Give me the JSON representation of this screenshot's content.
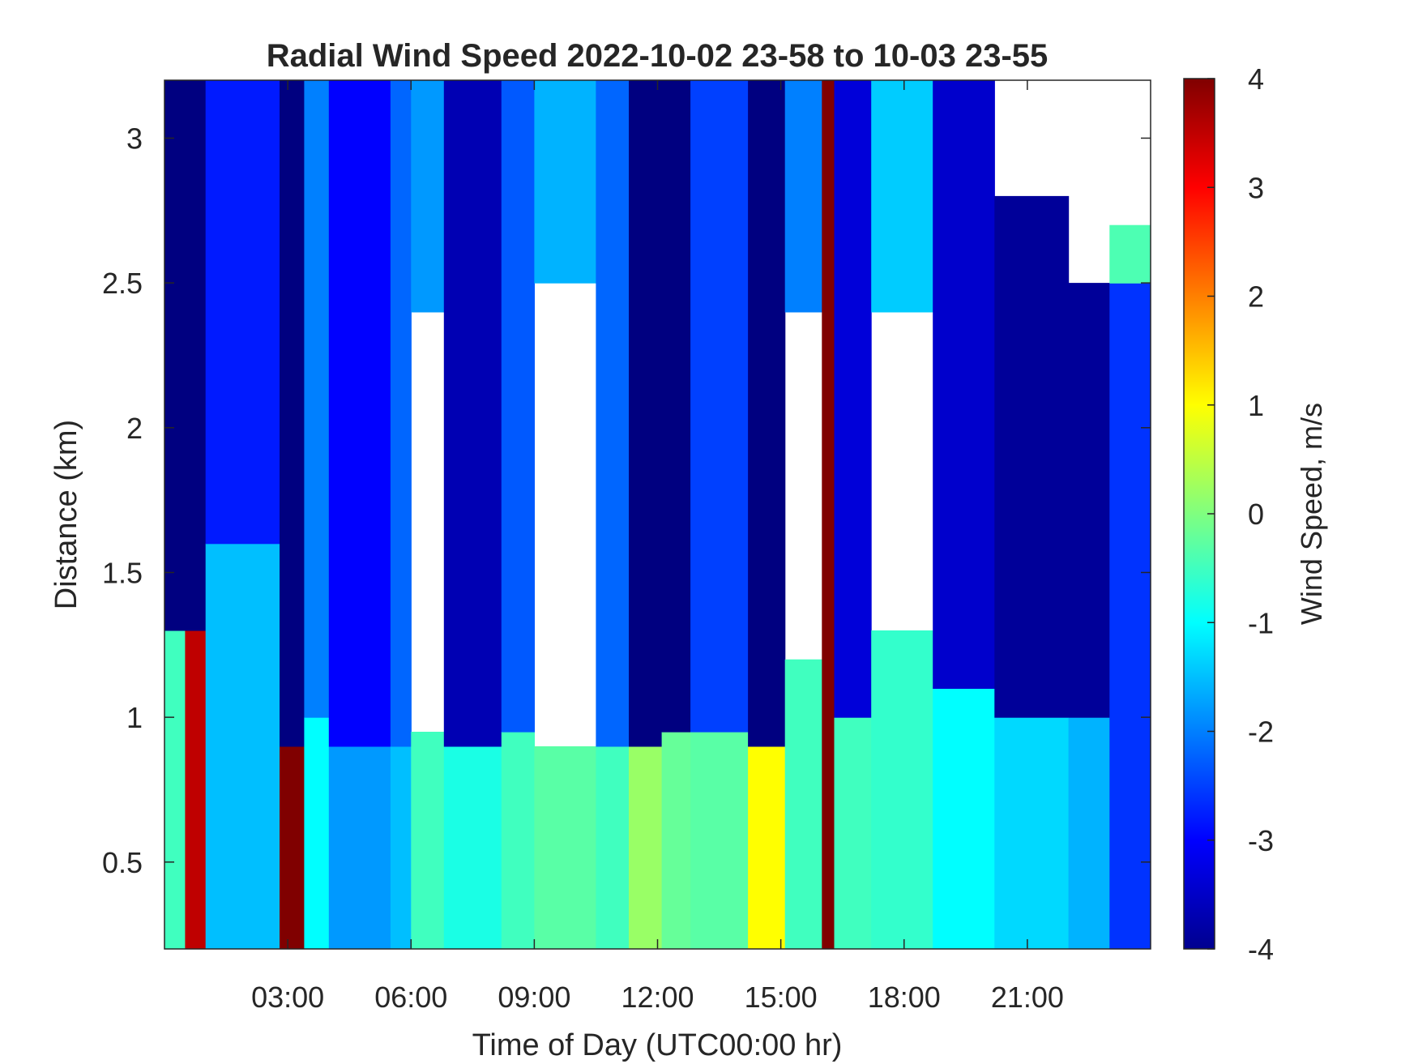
{
  "chart_data": {
    "type": "heatmap",
    "title": "Radial Wind Speed 2022-10-02 23-58 to 10-03 23-55",
    "xlabel": "Time of Day (UTC00:00 hr)",
    "ylabel": "Distance (km)",
    "colorbar_label": "Wind Speed, m/s",
    "colormap": "jet",
    "x_unit": "hours UTC",
    "xlim": [
      0,
      24
    ],
    "ylim": [
      0.2,
      3.2
    ],
    "clim": [
      -4,
      4
    ],
    "x_ticks": [
      3,
      6,
      9,
      12,
      15,
      18,
      21
    ],
    "x_tick_labels": [
      "03:00",
      "06:00",
      "09:00",
      "12:00",
      "15:00",
      "18:00",
      "21:00"
    ],
    "y_ticks": [
      0.5,
      1,
      1.5,
      2,
      2.5,
      3
    ],
    "y_tick_labels": [
      "0.5",
      "1",
      "1.5",
      "2",
      "2.5",
      "3"
    ],
    "c_ticks": [
      4,
      3,
      2,
      1,
      0,
      -1,
      -2,
      -3,
      -4
    ],
    "c_tick_labels": [
      "4",
      "3",
      "2",
      "1",
      "0",
      "-1",
      "-2",
      "-3",
      "-4"
    ],
    "segments": [
      {
        "x": [
          0.0,
          0.5
        ],
        "bands": [
          [
            0.2,
            1.3,
            -0.5
          ],
          [
            1.3,
            3.2,
            -4
          ]
        ]
      },
      {
        "x": [
          0.5,
          1.0
        ],
        "bands": [
          [
            0.2,
            1.3,
            3.5
          ],
          [
            1.3,
            3.2,
            -4
          ]
        ]
      },
      {
        "x": [
          1.0,
          2.8
        ],
        "bands": [
          [
            0.2,
            1.6,
            -1.5
          ],
          [
            1.6,
            3.2,
            -2.8
          ]
        ]
      },
      {
        "x": [
          2.8,
          3.4
        ],
        "bands": [
          [
            0.2,
            0.9,
            4
          ],
          [
            0.9,
            3.2,
            -4
          ]
        ]
      },
      {
        "x": [
          3.4,
          4.0
        ],
        "bands": [
          [
            0.2,
            1.0,
            -1.0
          ],
          [
            1.0,
            3.2,
            -2.0
          ]
        ]
      },
      {
        "x": [
          4.0,
          5.5
        ],
        "bands": [
          [
            0.2,
            0.9,
            -1.8
          ],
          [
            0.9,
            3.2,
            -3.0
          ]
        ]
      },
      {
        "x": [
          5.5,
          6.0
        ],
        "bands": [
          [
            0.2,
            0.9,
            -1.5
          ],
          [
            0.9,
            3.2,
            -2.2
          ]
        ]
      },
      {
        "x": [
          6.0,
          6.8
        ],
        "bands": [
          [
            0.2,
            0.95,
            -0.5
          ],
          [
            2.4,
            3.2,
            -1.8
          ]
        ]
      },
      {
        "x": [
          6.8,
          8.2
        ],
        "bands": [
          [
            0.2,
            0.9,
            -0.8
          ],
          [
            0.9,
            3.2,
            -3.6
          ]
        ]
      },
      {
        "x": [
          8.2,
          9.0
        ],
        "bands": [
          [
            0.2,
            0.95,
            -0.5
          ],
          [
            0.95,
            3.2,
            -2.3
          ]
        ]
      },
      {
        "x": [
          9.0,
          10.5
        ],
        "bands": [
          [
            0.2,
            0.9,
            -0.3
          ],
          [
            2.5,
            3.2,
            -1.6
          ]
        ]
      },
      {
        "x": [
          10.5,
          11.3
        ],
        "bands": [
          [
            0.2,
            0.9,
            -0.5
          ],
          [
            0.9,
            3.2,
            -2.2
          ]
        ]
      },
      {
        "x": [
          11.3,
          12.1
        ],
        "bands": [
          [
            0.2,
            0.9,
            0.2
          ],
          [
            0.9,
            3.2,
            -4
          ]
        ]
      },
      {
        "x": [
          12.1,
          12.8
        ],
        "bands": [
          [
            0.2,
            0.95,
            -0.2
          ],
          [
            0.95,
            3.2,
            -4
          ]
        ]
      },
      {
        "x": [
          12.8,
          14.2
        ],
        "bands": [
          [
            0.2,
            0.95,
            -0.3
          ],
          [
            0.95,
            3.2,
            -2.5
          ]
        ]
      },
      {
        "x": [
          14.2,
          15.1
        ],
        "bands": [
          [
            0.2,
            0.9,
            1.0
          ],
          [
            0.9,
            3.2,
            -4
          ]
        ]
      },
      {
        "x": [
          15.1,
          16.0
        ],
        "bands": [
          [
            0.2,
            1.2,
            -0.5
          ],
          [
            2.4,
            3.2,
            -2.0
          ]
        ]
      },
      {
        "x": [
          16.0,
          16.3
        ],
        "bands": [
          [
            0.2,
            3.2,
            4
          ]
        ]
      },
      {
        "x": [
          16.3,
          17.2
        ],
        "bands": [
          [
            0.2,
            1.0,
            -0.5
          ],
          [
            1.0,
            3.2,
            -3.3
          ]
        ]
      },
      {
        "x": [
          17.2,
          18.7
        ],
        "bands": [
          [
            0.2,
            1.3,
            -0.6
          ],
          [
            2.4,
            3.2,
            -1.4
          ]
        ]
      },
      {
        "x": [
          18.7,
          20.2
        ],
        "bands": [
          [
            0.2,
            1.1,
            -1.0
          ],
          [
            1.1,
            3.2,
            -3.4
          ]
        ]
      },
      {
        "x": [
          20.2,
          22.0
        ],
        "bands": [
          [
            0.2,
            1.0,
            -1.3
          ],
          [
            1.0,
            2.8,
            -3.8
          ]
        ]
      },
      {
        "x": [
          22.0,
          23.0
        ],
        "bands": [
          [
            0.2,
            1.0,
            -1.6
          ],
          [
            1.0,
            2.5,
            -3.8
          ]
        ]
      },
      {
        "x": [
          23.0,
          24.0
        ],
        "bands": [
          [
            0.2,
            2.5,
            -2.6
          ],
          [
            2.5,
            2.7,
            -0.4
          ]
        ]
      }
    ]
  }
}
